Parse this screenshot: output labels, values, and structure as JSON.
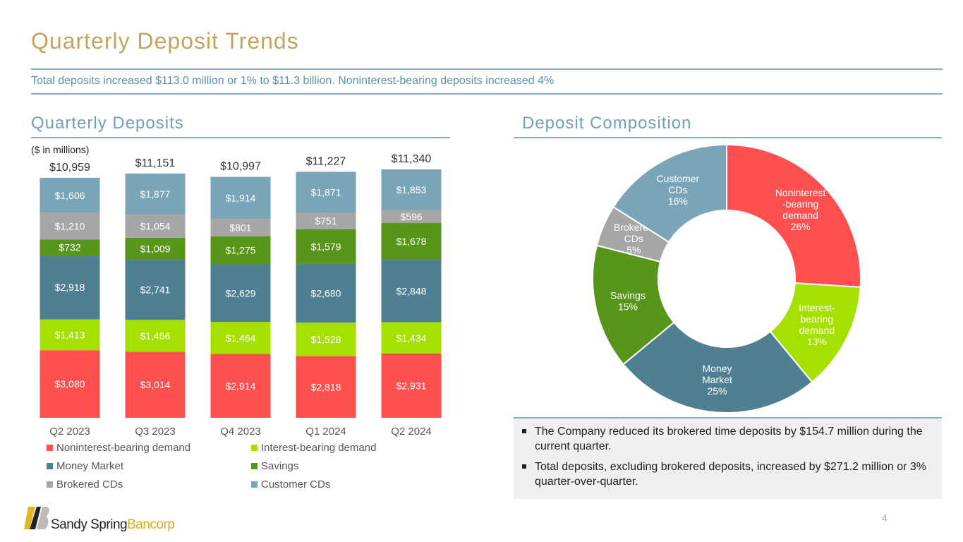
{
  "title": "Quarterly Deposit Trends",
  "subtitle": "Total deposits increased $113.0 million or 1% to $11.3 billion. Noninterest-bearing deposits increased 4%",
  "left_heading": "Quarterly Deposits",
  "right_heading": "Deposit Composition",
  "page_number": "4",
  "logo": {
    "part1": "Sandy Spring",
    "part2": "Bancorp"
  },
  "bullets": [
    "The Company reduced its brokered time deposits by $154.7 million during the current quarter.",
    "Total deposits, excluding brokered deposits, increased by $271.2 million or 3% quarter-over-quarter."
  ],
  "chart_data": [
    {
      "type": "bar",
      "stacked": true,
      "unit_note": "($ in millions)",
      "categories": [
        "Q2 2023",
        "Q3 2023",
        "Q4 2023",
        "Q1 2024",
        "Q2 2024"
      ],
      "totals": [
        "$10,959",
        "$11,151",
        "$10,997",
        "$11,227",
        "$11,340"
      ],
      "series": [
        {
          "name": "Noninterest-bearing demand",
          "color": "#ff4f4f",
          "values": [
            3080,
            3014,
            2914,
            2818,
            2931
          ],
          "labels": [
            "$3,080",
            "$3,014",
            "$2,914",
            "$2,818",
            "$2,931"
          ]
        },
        {
          "name": "Interest-bearing demand",
          "color": "#a6e000",
          "values": [
            1413,
            1456,
            1464,
            1528,
            1434
          ],
          "labels": [
            "$1,413",
            "$1,456",
            "$1,464",
            "$1,528",
            "$1,434"
          ]
        },
        {
          "name": "Money Market",
          "color": "#4f7f93",
          "values": [
            2918,
            2741,
            2629,
            2680,
            2848
          ],
          "labels": [
            "$2,918",
            "$2,741",
            "$2,629",
            "$2,680",
            "$2,848"
          ]
        },
        {
          "name": "Savings",
          "color": "#57961a",
          "values": [
            732,
            1009,
            1275,
            1579,
            1678
          ],
          "labels": [
            "$732",
            "$1,009",
            "$1,275",
            "$1,579",
            "$1,678"
          ]
        },
        {
          "name": "Brokered CDs",
          "color": "#a6a6a6",
          "values": [
            1210,
            1054,
            801,
            751,
            596
          ],
          "labels": [
            "$1,210",
            "$1,054",
            "$801",
            "$751",
            "$596"
          ]
        },
        {
          "name": "Customer CDs",
          "color": "#7aa5b8",
          "values": [
            1606,
            1877,
            1914,
            1871,
            1853
          ],
          "labels": [
            "$1,606",
            "$1,877",
            "$1,914",
            "$1,871",
            "$1,853"
          ]
        }
      ],
      "ylim": [
        0,
        11340
      ]
    },
    {
      "type": "pie",
      "donut": true,
      "slices": [
        {
          "name": "Noninterest -bearing demand",
          "lines": [
            "Noninterest",
            "-bearing",
            "demand",
            "26%"
          ],
          "value": 26,
          "color": "#ff4f4f"
        },
        {
          "name": "Interest- bearing demand",
          "lines": [
            "Interest-",
            "bearing",
            "demand",
            "13%"
          ],
          "value": 13,
          "color": "#a6e000"
        },
        {
          "name": "Money Market",
          "lines": [
            "Money",
            "Market",
            "25%"
          ],
          "value": 25,
          "color": "#4f7f93"
        },
        {
          "name": "Savings",
          "lines": [
            "Savings",
            "15%"
          ],
          "value": 15,
          "color": "#57961a"
        },
        {
          "name": "Brokered CDs",
          "lines": [
            "Brokered",
            "CDs",
            "5%"
          ],
          "value": 5,
          "color": "#a6a6a6"
        },
        {
          "name": "Customer CDs",
          "lines": [
            "Customer",
            "CDs",
            "16%"
          ],
          "value": 16,
          "color": "#7aa5b8"
        }
      ]
    }
  ]
}
